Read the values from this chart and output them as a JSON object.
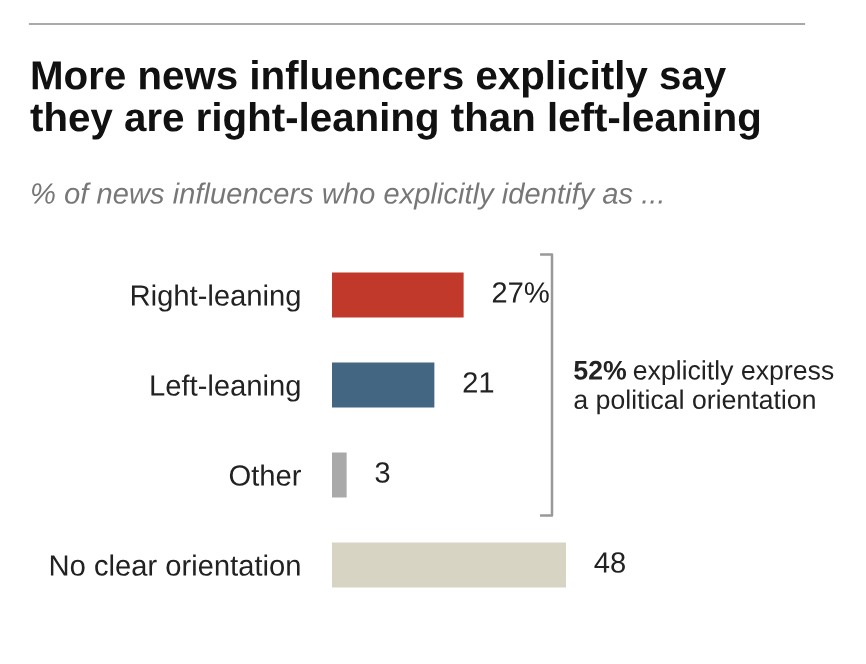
{
  "chart_data": {
    "type": "bar",
    "orientation": "horizontal",
    "title": "More news influencers explicitly say\nthey are right-leaning than left-leaning",
    "subtitle": "% of news influencers who explicitly identify as ...",
    "categories": [
      "Right-leaning",
      "Left-leaning",
      "Other",
      "No clear orientation"
    ],
    "values": [
      27,
      21,
      3,
      48
    ],
    "colors": [
      "#c0392b",
      "#436782",
      "#a9a9a9",
      "#d7d4c3"
    ],
    "value_labels": [
      "27%",
      "21",
      "3",
      "48"
    ],
    "annotations": [
      "52% explicitly express\na political orientation"
    ]
  }
}
